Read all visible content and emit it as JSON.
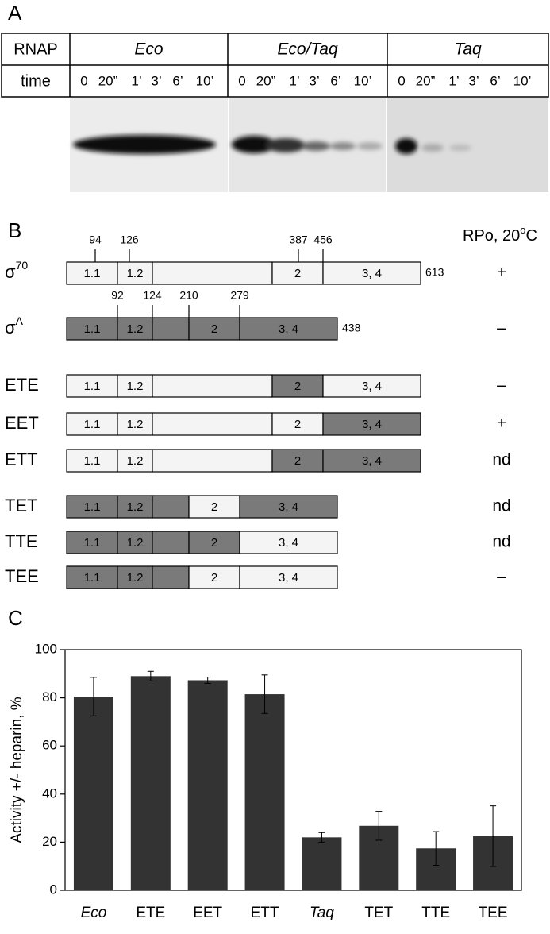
{
  "panel_a": {
    "label": "A",
    "row_labels": [
      "RNAP",
      "time"
    ],
    "groups": [
      {
        "name": "Eco",
        "times": [
          "0",
          "20”",
          "1’",
          "3’",
          "6’",
          "10’"
        ]
      },
      {
        "name": "Eco/Taq",
        "times": [
          "0",
          "20”",
          "1’",
          "3’",
          "6’",
          "10’"
        ]
      },
      {
        "name": "Taq",
        "times": [
          "0",
          "20”",
          "1’",
          "3’",
          "6’",
          "10’"
        ]
      }
    ]
  },
  "panel_b": {
    "label": "B",
    "rpo_header": {
      "text": "RPo, 20",
      "sup": "o",
      "unit": "C"
    },
    "rows": [
      {
        "name": "σ",
        "sup": "70",
        "ticks": [
          "94",
          "126",
          "387",
          "456"
        ],
        "end_label": "613",
        "rpo": "+",
        "segments": [
          {
            "label": "1.1",
            "color": "#f4f4f4"
          },
          {
            "label": "1.2",
            "color": "#f4f4f4"
          },
          {
            "color": "#f4f4f4"
          },
          {
            "label": "2",
            "color": "#f4f4f4"
          },
          {
            "label": "3, 4",
            "color": "#f4f4f4"
          }
        ]
      },
      {
        "name": "σ",
        "sup": "A",
        "ticks": [
          "92",
          "124",
          "210",
          "279"
        ],
        "end_label": "438",
        "rpo": "–",
        "segments": [
          {
            "label": "1.1",
            "color": "#7a7a7a"
          },
          {
            "label": "1.2",
            "color": "#7a7a7a"
          },
          {
            "color": "#7a7a7a"
          },
          {
            "label": "2",
            "color": "#7a7a7a"
          },
          {
            "label": "3, 4",
            "color": "#7a7a7a"
          }
        ]
      },
      {
        "name": "ETE",
        "rpo": "–",
        "segments": [
          {
            "label": "1.1",
            "color": "#f4f4f4"
          },
          {
            "label": "1.2",
            "color": "#f4f4f4"
          },
          {
            "color": "#f4f4f4"
          },
          {
            "label": "2",
            "color": "#7a7a7a"
          },
          {
            "label": "3, 4",
            "color": "#f4f4f4"
          }
        ]
      },
      {
        "name": "EET",
        "rpo": "+",
        "segments": [
          {
            "label": "1.1",
            "color": "#f4f4f4"
          },
          {
            "label": "1.2",
            "color": "#f4f4f4"
          },
          {
            "color": "#f4f4f4"
          },
          {
            "label": "2",
            "color": "#f4f4f4"
          },
          {
            "label": "3, 4",
            "color": "#7a7a7a"
          }
        ]
      },
      {
        "name": "ETT",
        "rpo": "nd",
        "segments": [
          {
            "label": "1.1",
            "color": "#f4f4f4"
          },
          {
            "label": "1.2",
            "color": "#f4f4f4"
          },
          {
            "color": "#f4f4f4"
          },
          {
            "label": "2",
            "color": "#7a7a7a"
          },
          {
            "label": "3, 4",
            "color": "#7a7a7a"
          }
        ]
      },
      {
        "name": "TET",
        "rpo": "nd",
        "segments": [
          {
            "label": "1.1",
            "color": "#7a7a7a"
          },
          {
            "label": "1.2",
            "color": "#7a7a7a"
          },
          {
            "color": "#7a7a7a"
          },
          {
            "label": "2",
            "color": "#f4f4f4"
          },
          {
            "label": "3, 4",
            "color": "#7a7a7a"
          }
        ]
      },
      {
        "name": "TTE",
        "rpo": "nd",
        "segments": [
          {
            "label": "1.1",
            "color": "#7a7a7a"
          },
          {
            "label": "1.2",
            "color": "#7a7a7a"
          },
          {
            "color": "#7a7a7a"
          },
          {
            "label": "2",
            "color": "#7a7a7a"
          },
          {
            "label": "3, 4",
            "color": "#f4f4f4"
          }
        ]
      },
      {
        "name": "TEE",
        "rpo": "–",
        "segments": [
          {
            "label": "1.1",
            "color": "#7a7a7a"
          },
          {
            "label": "1.2",
            "color": "#7a7a7a"
          },
          {
            "color": "#7a7a7a"
          },
          {
            "label": "2",
            "color": "#f4f4f4"
          },
          {
            "label": "3, 4",
            "color": "#f4f4f4"
          }
        ]
      }
    ]
  },
  "chart_data": {
    "type": "bar",
    "panel_label": "C",
    "y_label": "Activity +/- heparin, %",
    "categories": [
      "Eco",
      "ETE",
      "EET",
      "ETT",
      "Taq",
      "TET",
      "TTE",
      "TEE"
    ],
    "values": [
      80.5,
      89,
      87.3,
      81.5,
      22,
      26.8,
      17.4,
      22.5
    ],
    "errors": [
      8,
      2,
      1.3,
      8,
      2,
      6,
      7,
      12.6
    ],
    "color": "#333333",
    "ylim": [
      0,
      100
    ],
    "yticks": [
      0,
      20,
      40,
      60,
      80,
      100
    ]
  }
}
